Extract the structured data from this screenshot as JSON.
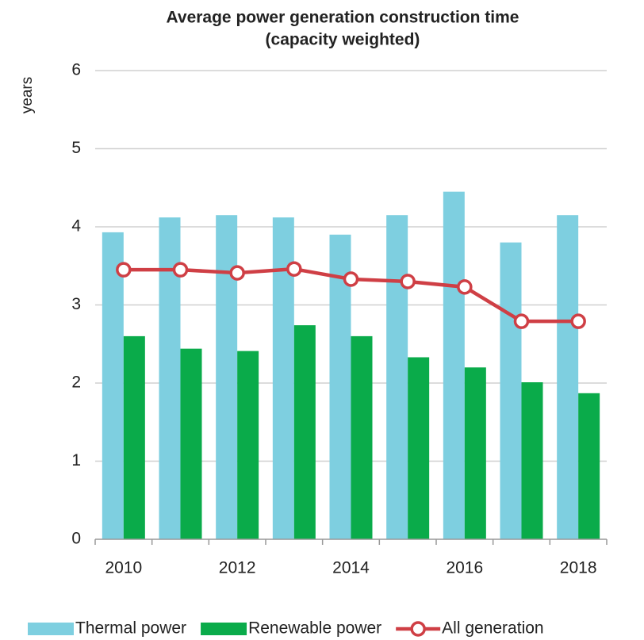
{
  "chart_data": {
    "type": "bar_line",
    "title": "Average power generation construction time",
    "subtitle": "(capacity weighted)",
    "y_label": "years",
    "categories": [
      "2010",
      null,
      "2012",
      null,
      "2014",
      null,
      "2016",
      null,
      "2018"
    ],
    "series": [
      {
        "name": "Thermal power",
        "type": "bar",
        "color": "#7ecfe0",
        "values": [
          3.93,
          4.12,
          4.15,
          4.12,
          3.9,
          4.15,
          4.45,
          3.8,
          4.15
        ]
      },
      {
        "name": "Renewable power",
        "type": "bar",
        "color": "#0aab4a",
        "values": [
          2.6,
          2.44,
          2.41,
          2.74,
          2.6,
          2.33,
          2.2,
          2.01,
          1.87
        ]
      },
      {
        "name": "All generation",
        "type": "line",
        "color": "#cf3f45",
        "values": [
          3.45,
          3.45,
          3.41,
          3.46,
          3.33,
          3.3,
          3.23,
          2.79,
          2.79
        ]
      }
    ],
    "ylim": [
      0,
      6
    ],
    "yticks": [
      0,
      1,
      2,
      3,
      4,
      5,
      6
    ],
    "grid": true,
    "legend": "bottom"
  }
}
